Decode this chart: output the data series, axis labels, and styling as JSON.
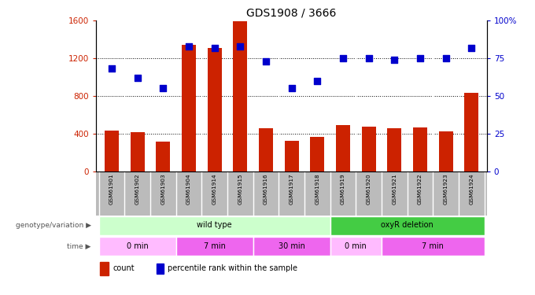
{
  "title": "GDS1908 / 3666",
  "samples": [
    "GSM61901",
    "GSM61902",
    "GSM61903",
    "GSM61904",
    "GSM61914",
    "GSM61915",
    "GSM61916",
    "GSM61917",
    "GSM61918",
    "GSM61919",
    "GSM61920",
    "GSM61921",
    "GSM61922",
    "GSM61923",
    "GSM61924"
  ],
  "counts": [
    430,
    415,
    310,
    1340,
    1310,
    1590,
    460,
    320,
    360,
    490,
    470,
    455,
    465,
    425,
    830
  ],
  "percentiles": [
    68,
    62,
    55,
    83,
    82,
    83,
    73,
    55,
    60,
    75,
    75,
    74,
    75,
    75,
    82
  ],
  "bar_color": "#cc2200",
  "dot_color": "#0000cc",
  "ylim_left": [
    0,
    1600
  ],
  "ylim_right": [
    0,
    100
  ],
  "yticks_left": [
    0,
    400,
    800,
    1200,
    1600
  ],
  "yticks_right": [
    0,
    25,
    50,
    75,
    100
  ],
  "ytick_labels_right": [
    "0",
    "25",
    "50",
    "75",
    "100%"
  ],
  "grid_lines": [
    400,
    800,
    1200
  ],
  "genotype_groups": [
    {
      "label": "wild type",
      "start": 0,
      "end": 8,
      "color": "#ccffcc"
    },
    {
      "label": "oxyR deletion",
      "start": 9,
      "end": 14,
      "color": "#44cc44"
    }
  ],
  "time_groups": [
    {
      "label": "0 min",
      "start": 0,
      "end": 2,
      "color": "#ffbbff"
    },
    {
      "label": "7 min",
      "start": 3,
      "end": 5,
      "color": "#ee66ee"
    },
    {
      "label": "30 min",
      "start": 6,
      "end": 8,
      "color": "#ee66ee"
    },
    {
      "label": "0 min",
      "start": 9,
      "end": 10,
      "color": "#ffbbff"
    },
    {
      "label": "7 min",
      "start": 11,
      "end": 14,
      "color": "#ee66ee"
    }
  ],
  "legend_count_color": "#cc2200",
  "legend_dot_color": "#0000cc",
  "bg_color": "#ffffff",
  "tick_area_color": "#bbbbbb",
  "geno_label": "genotype/variation",
  "time_label": "time"
}
